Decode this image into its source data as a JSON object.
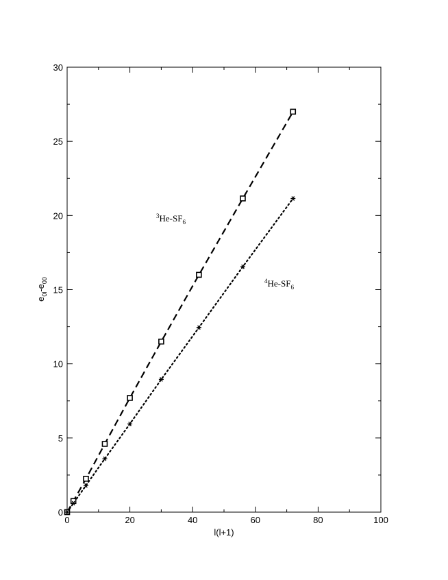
{
  "chart_data": {
    "type": "scatter",
    "xlabel": "l(l+1)",
    "ylabel": {
      "main": "e",
      "sub1": "0l",
      "mid": "-e",
      "sub2": "00"
    },
    "xlim": [
      0,
      100
    ],
    "ylim": [
      0,
      30
    ],
    "xticks": [
      0,
      20,
      40,
      60,
      80,
      100
    ],
    "yticks": [
      0,
      5,
      10,
      15,
      20,
      25,
      30
    ],
    "grid": false,
    "series": [
      {
        "label_sup": "3",
        "label_main": "He-SF",
        "label_sub": "6",
        "marker": "square",
        "line_style": "dashed",
        "x": [
          0,
          2,
          6,
          12,
          20,
          30,
          42,
          56,
          72
        ],
        "y": [
          0.0,
          0.75,
          2.25,
          4.6,
          7.7,
          11.5,
          16.0,
          21.15,
          27.0
        ]
      },
      {
        "label_sup": "4",
        "label_main": "He-SF",
        "label_sub": "6",
        "marker": "asterisk",
        "line_style": "dotted",
        "x": [
          0,
          2,
          6,
          12,
          20,
          30,
          42,
          56,
          72
        ],
        "y": [
          0.0,
          0.6,
          1.8,
          3.6,
          5.95,
          8.95,
          12.45,
          16.55,
          21.15
        ]
      }
    ]
  }
}
